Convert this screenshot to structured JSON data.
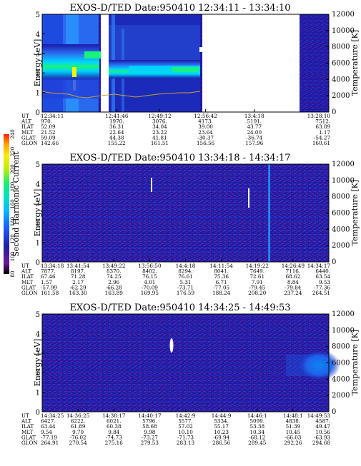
{
  "colors": {
    "bg": "#1a1aa8",
    "bg_dark": "#141490",
    "noise_red": "#b0266a",
    "noise_blue": "#2a48d8",
    "cyan": "#00d6ff",
    "green": "#19f27a",
    "yellow": "#fff200",
    "orange_line": "#c8a040",
    "gap": "#ffffff"
  },
  "colorbar": {
    "label": "Second Harmonic Current",
    "ticks": [
      "80",
      "100",
      "120",
      "140",
      "160",
      "180",
      "200",
      "220",
      "240"
    ],
    "colors": [
      "#000000",
      "#6a1a9a",
      "#2020a0",
      "#1c5cff",
      "#00b8ff",
      "#00e0c8",
      "#18f070",
      "#b8f000",
      "#ffe800",
      "#ffa000",
      "#ff2000"
    ]
  },
  "chart_data": [
    {
      "type": "heatmap",
      "title": "EXOS-D/TED   Date:950410   12:34:11 - 13:34:10",
      "ylabel": "Energy [eV]",
      "y2label": "Temperature [K]",
      "ylim": [
        0,
        5
      ],
      "yticks": [
        "0",
        "1",
        "2",
        "3",
        "4",
        "5"
      ],
      "y2lim": [
        0,
        12000
      ],
      "y2ticks": [
        "0",
        "2000",
        "4000",
        "6000",
        "8000",
        "10000",
        "12000"
      ],
      "xticks": [
        "12:34:11",
        "12:41:46",
        "12:49:12",
        "12:56:42",
        "13:4:18",
        "13:28:10"
      ],
      "xpos": [
        0,
        0.26,
        0.41,
        0.57,
        0.74,
        1.0
      ],
      "orbit": [
        {
          "label": "UT",
          "values": [
            "12:34:11",
            "12:41:46",
            "12:49:12",
            "12:56:42",
            "13:4:18",
            "13:28:10"
          ]
        },
        {
          "label": "ALT",
          "values": [
            "970.",
            "1970.",
            "3076.",
            "4173.",
            "5191.",
            "7512."
          ]
        },
        {
          "label": "ILAT",
          "values": [
            "52.09",
            "36.31",
            "34.04",
            "39.00",
            "43.77",
            "63.89"
          ]
        },
        {
          "label": "MLT",
          "values": [
            "21.52",
            "22.64",
            "23.22",
            "23.64",
            "24.00",
            "1.17"
          ]
        },
        {
          "label": "GLAT",
          "values": [
            "59.09",
            "44.38",
            "41.81",
            "-30.37",
            "-36.74",
            "-54.27"
          ]
        },
        {
          "label": "GLON",
          "values": [
            "142.66",
            "155.22",
            "161.51",
            "156.56",
            "157.96",
            "160.61"
          ]
        }
      ],
      "gaps_fraction": [
        [
          0.39,
          0.42
        ],
        [
          0.98,
          1.64
        ]
      ]
    },
    {
      "type": "heatmap",
      "title": "EXOS-D/TED   Date:950410   13:34:18 - 14:34:17",
      "ylabel": "Energy [eV]",
      "y2label": "Temperature [K]",
      "ylim": [
        0,
        5
      ],
      "yticks": [
        "0",
        "1",
        "2",
        "3",
        "4",
        "5"
      ],
      "y2lim": [
        0,
        12000
      ],
      "y2ticks": [
        "0",
        "2000",
        "4000",
        "6000",
        "8000",
        "10000",
        "12000"
      ],
      "xticks": [
        "13:34:18",
        "13:41:54",
        "13:49:22",
        "13:56:50",
        "14:4:18",
        "14:11:54",
        "14:19:22",
        "14:26:49",
        "14:34:17"
      ],
      "orbit": [
        {
          "label": "UT",
          "values": [
            "13:34:18",
            "13:41:54",
            "13:49:22",
            "13:56:50",
            "14:4:18",
            "14:11:54",
            "14:19:22",
            "14:26:49",
            "14:34:17"
          ]
        },
        {
          "label": "ALT",
          "values": [
            "7877.",
            "8197.",
            "8370.",
            "8402.",
            "8294.",
            "8041.",
            "7649.",
            "7116.",
            "6440."
          ]
        },
        {
          "label": "ILAT",
          "values": [
            "67.46",
            "71.28",
            "74.25",
            "76.15",
            "76.61",
            "75.36",
            "72.61",
            "68.62",
            "63.54"
          ]
        },
        {
          "label": "MLT",
          "values": [
            "1.57",
            "2.17",
            "2.96",
            "4.01",
            "5.31",
            "6.71",
            "7.91",
            "8.84",
            "9.53"
          ]
        },
        {
          "label": "GLAT",
          "values": [
            "-57.99",
            "-62.29",
            "-66.28",
            "-70.09",
            "-73.71",
            "-77.05",
            "-79.45",
            "-79.84",
            "-77.36"
          ]
        },
        {
          "label": "GLON",
          "values": [
            "161.58",
            "163.30",
            "163.89",
            "169.95",
            "176.59",
            "188.24",
            "208.20",
            "237.24",
            "264.51"
          ]
        }
      ]
    },
    {
      "type": "heatmap",
      "title": "EXOS-D/TED   Date:950410   14:34:25 - 14:49:53",
      "ylabel": "Energy [eV]",
      "y2label": "Temperature [K]",
      "ylim": [
        0,
        5
      ],
      "yticks": [
        "0",
        "1",
        "2",
        "3",
        "4",
        "5"
      ],
      "y2lim": [
        0,
        12000
      ],
      "y2ticks": [
        "0",
        "2000",
        "4000",
        "6000",
        "8000",
        "10000",
        "12000"
      ],
      "xticks": [
        "14:34:25",
        "14:36:25",
        "14:38:17",
        "14:40:17",
        "14:42:9",
        "14:44:9",
        "14:46:1",
        "14:48:1",
        "14:49:53"
      ],
      "orbit": [
        {
          "label": "UT",
          "values": [
            "14:34:25",
            "14:36:25",
            "14:38:17",
            "14:40:17",
            "14:42:9",
            "14:44:9",
            "14:46:1",
            "14:48:1",
            "14:49:53"
          ]
        },
        {
          "label": "ALT",
          "values": [
            "6427.",
            "6222.",
            "6021.",
            "5796.",
            "5577.",
            "5334.",
            "5099.",
            "4838.",
            "4587."
          ]
        },
        {
          "label": "ILAT",
          "values": [
            "63.44",
            "61.89",
            "60.38",
            "58.68",
            "57.02",
            "55.17",
            "53.38",
            "51.39",
            "49.47"
          ]
        },
        {
          "label": "MLT",
          "values": [
            "9.54",
            "9.70",
            "9.84",
            "9.98",
            "10.10",
            "10.23",
            "10.34",
            "10.45",
            "10.56"
          ]
        },
        {
          "label": "GLAT",
          "values": [
            "-77.19",
            "-76.02",
            "-74.73",
            "-73.27",
            "-71.73",
            "-69.94",
            "-68.12",
            "-66.03",
            "-63.93"
          ]
        },
        {
          "label": "GLON",
          "values": [
            "264.91",
            "270.54",
            "275.16",
            "279.53",
            "283.13",
            "286.56",
            "289.45",
            "292.26",
            "294.68"
          ]
        }
      ]
    }
  ]
}
